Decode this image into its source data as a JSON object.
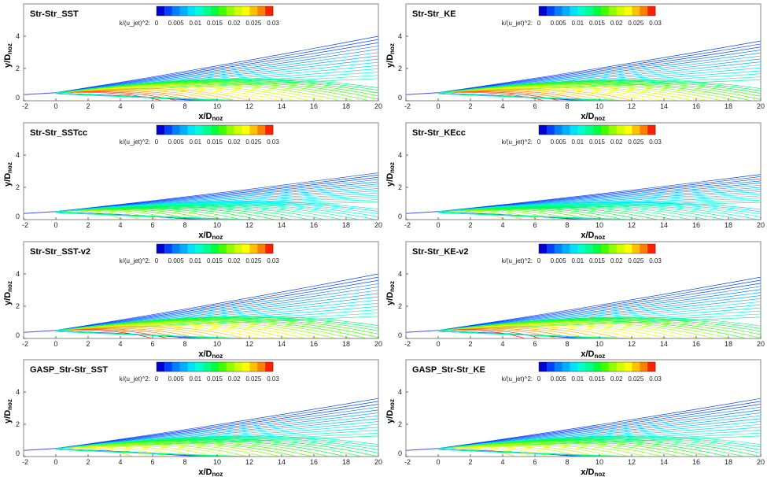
{
  "chart_data": {
    "type": "contour",
    "variable_label": "k/(u_jet)^2:",
    "colorbar": {
      "min": 0,
      "max": 0.03,
      "levels": 15,
      "ticks": [
        "0",
        "0.005",
        "0.01",
        "0.015",
        "0.02",
        "0.025",
        "0.03"
      ],
      "colors": [
        "#0000d0",
        "#0040ff",
        "#0080ff",
        "#00b0ff",
        "#00e0ff",
        "#00ffd0",
        "#00ff90",
        "#00ff40",
        "#40ff00",
        "#90ff00",
        "#d0ff00",
        "#ffff00",
        "#ffc000",
        "#ff8000",
        "#ff2000"
      ]
    },
    "xlabel": "x/D",
    "xlabel_sub": "noz",
    "ylabel": "y/D",
    "ylabel_sub": "noz",
    "xlim": [
      -2,
      20
    ],
    "ylim": [
      0,
      6
    ],
    "xticks": [
      "-2",
      "0",
      "2",
      "4",
      "6",
      "8",
      "10",
      "12",
      "14",
      "16",
      "18",
      "20"
    ],
    "yticks": [
      "0",
      "2",
      "4"
    ],
    "panels": [
      {
        "title": "Str-Str_SST",
        "spread_at_x20": 4.0,
        "core_peak": 0.03,
        "core_end": 11
      },
      {
        "title": "Str-Str_KE",
        "spread_at_x20": 3.7,
        "core_peak": 0.03,
        "core_end": 11
      },
      {
        "title": "Str-Str_SSTcc",
        "spread_at_x20": 2.9,
        "core_peak": 0.02,
        "core_end": 7
      },
      {
        "title": "Str-Str_KEcc",
        "spread_at_x20": 2.8,
        "core_peak": 0.02,
        "core_end": 7
      },
      {
        "title": "Str-Str_SST-v2",
        "spread_at_x20": 4.0,
        "core_peak": 0.03,
        "core_end": 10
      },
      {
        "title": "Str-Str_KE-v2",
        "spread_at_x20": 3.8,
        "core_peak": 0.03,
        "core_end": 9
      },
      {
        "title": "GASP_Str-Str_SST",
        "spread_at_x20": 3.6,
        "core_peak": 0.025,
        "core_end": 8
      },
      {
        "title": "GASP_Str-Str_KE",
        "spread_at_x20": 3.6,
        "core_peak": 0.025,
        "core_end": 8
      }
    ]
  }
}
